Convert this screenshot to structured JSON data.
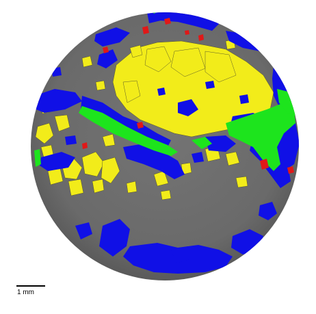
{
  "image": {
    "description_type": "micro-CT cross-section segmentation",
    "colors": {
      "background": "#ffffff",
      "matrix": "#6f6f6f",
      "matrix_dark": "#5c5c5c",
      "yellow_phase": "#f2ec1a",
      "blue_phase": "#1010e6",
      "green_phase": "#1de41d",
      "red_phase": "#e01818"
    }
  },
  "scale_bar": {
    "label": "1 mm"
  }
}
